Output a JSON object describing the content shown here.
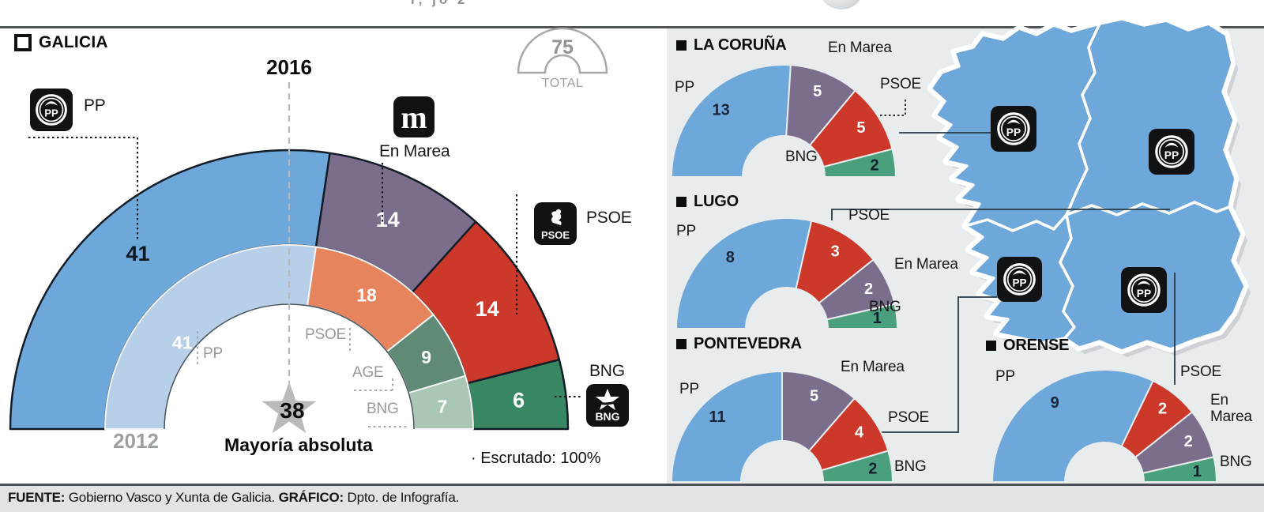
{
  "top": {
    "cutoff_fragment": "r, jo 2"
  },
  "header": {
    "region_title": "GALICIA",
    "year_top": "2016",
    "year_bottom": "2012",
    "total_badge": {
      "value": "75",
      "label": "TOTAL"
    }
  },
  "legend": {
    "pp": "PP",
    "en_marea": "En Marea",
    "en_marea_2line": "En\nMarea",
    "psoe": "PSOE",
    "bng": "BNG",
    "age": "AGE"
  },
  "annotations": {
    "majority_value": "38",
    "majority_label": "Mayoría absoluta",
    "escrutado": "· Escrutado: 100%"
  },
  "colors": {
    "pp": "#6ea7d9",
    "pp_2012": "#b7cfe9",
    "en_marea": "#7b6e8d",
    "psoe": "#cc392b",
    "psoe_2012": "#e6845e",
    "age": "#5f8a75",
    "bng_2012": "#a9c7b4",
    "bng_2016": "#388763",
    "bng_prov": "#4aa07d",
    "panel_bg": "#e9eced",
    "footer_bg": "#e0e4e7",
    "map_blue": "#6ea7d9",
    "map_shadow": "#c9ced2",
    "label_gray": "#97999b",
    "wedge_outline": "#131c27",
    "connector": "#2b3a45",
    "star_gray": "#b9babc"
  },
  "chart_data": [
    {
      "id": "galicia-2016",
      "type": "hemicycle",
      "title": "Galicia 2016",
      "total": 75,
      "series": [
        {
          "name": "PP",
          "value": 41,
          "color": "#6ea7d9",
          "label_color": "#101820"
        },
        {
          "name": "En Marea",
          "value": 14,
          "color": "#7b6e8d",
          "label_color": "#ffffff"
        },
        {
          "name": "PSOE",
          "value": 14,
          "color": "#cc392b",
          "label_color": "#ffffff"
        },
        {
          "name": "BNG",
          "value": 6,
          "color": "#388763",
          "label_color": "#ffffff"
        }
      ]
    },
    {
      "id": "galicia-2012",
      "type": "hemicycle",
      "title": "Galicia 2012",
      "total": 75,
      "series": [
        {
          "name": "PP",
          "value": 41,
          "color": "#b7cfe9",
          "label_color": "#ffffff"
        },
        {
          "name": "PSOE",
          "value": 18,
          "color": "#e6845e",
          "label_color": "#ffffff"
        },
        {
          "name": "AGE",
          "value": 9,
          "color": "#5f8a75",
          "label_color": "#ffffff"
        },
        {
          "name": "BNG",
          "value": 7,
          "color": "#a9c7b4",
          "label_color": "#ffffff"
        }
      ]
    },
    {
      "id": "la-coruna",
      "type": "hemicycle",
      "heading": "LA CORUÑA",
      "total": 25,
      "series": [
        {
          "name": "PP",
          "value": 13,
          "color": "#6ea7d9",
          "label_color": "#17263a"
        },
        {
          "name": "En Marea",
          "value": 5,
          "color": "#7b6e8d",
          "label_color": "#ffffff"
        },
        {
          "name": "PSOE",
          "value": 5,
          "color": "#cc392b",
          "label_color": "#ffffff"
        },
        {
          "name": "BNG",
          "value": 2,
          "color": "#4aa07d",
          "label_color": "#10202e"
        }
      ]
    },
    {
      "id": "lugo",
      "type": "hemicycle",
      "heading": "LUGO",
      "total": 14,
      "series": [
        {
          "name": "PP",
          "value": 8,
          "color": "#6ea7d9",
          "label_color": "#17263a"
        },
        {
          "name": "PSOE",
          "value": 3,
          "color": "#cc392b",
          "label_color": "#ffffff"
        },
        {
          "name": "En Marea",
          "value": 2,
          "color": "#7b6e8d",
          "label_color": "#ffffff"
        },
        {
          "name": "BNG",
          "value": 1,
          "color": "#4aa07d",
          "label_color": "#10202e"
        }
      ]
    },
    {
      "id": "pontevedra",
      "type": "hemicycle",
      "heading": "PONTEVEDRA",
      "total": 22,
      "series": [
        {
          "name": "PP",
          "value": 11,
          "color": "#6ea7d9",
          "label_color": "#17263a"
        },
        {
          "name": "En Marea",
          "value": 5,
          "color": "#7b6e8d",
          "label_color": "#ffffff"
        },
        {
          "name": "PSOE",
          "value": 4,
          "color": "#cc392b",
          "label_color": "#ffffff"
        },
        {
          "name": "BNG",
          "value": 2,
          "color": "#4aa07d",
          "label_color": "#10202e"
        }
      ]
    },
    {
      "id": "orense",
      "type": "hemicycle",
      "heading": "ORENSE",
      "total": 14,
      "series": [
        {
          "name": "PP",
          "value": 9,
          "color": "#6ea7d9",
          "label_color": "#17263a"
        },
        {
          "name": "PSOE",
          "value": 2,
          "color": "#cc392b",
          "label_color": "#ffffff"
        },
        {
          "name": "En Marea",
          "value": 2,
          "color": "#7b6e8d",
          "label_color": "#ffffff"
        },
        {
          "name": "BNG",
          "value": 1,
          "color": "#4aa07d",
          "label_color": "#10202e"
        }
      ]
    }
  ],
  "logos": {
    "pp": "PP",
    "en_marea": "m",
    "psoe": "PSOE",
    "bng": "BNG"
  },
  "footer": {
    "source_label": "FUENTE:",
    "source": " Gobierno Vasco y Xunta de Galicia. ",
    "graphic_label": "GRÁFICO:",
    "graphic": " Dpto. de Infografía."
  }
}
